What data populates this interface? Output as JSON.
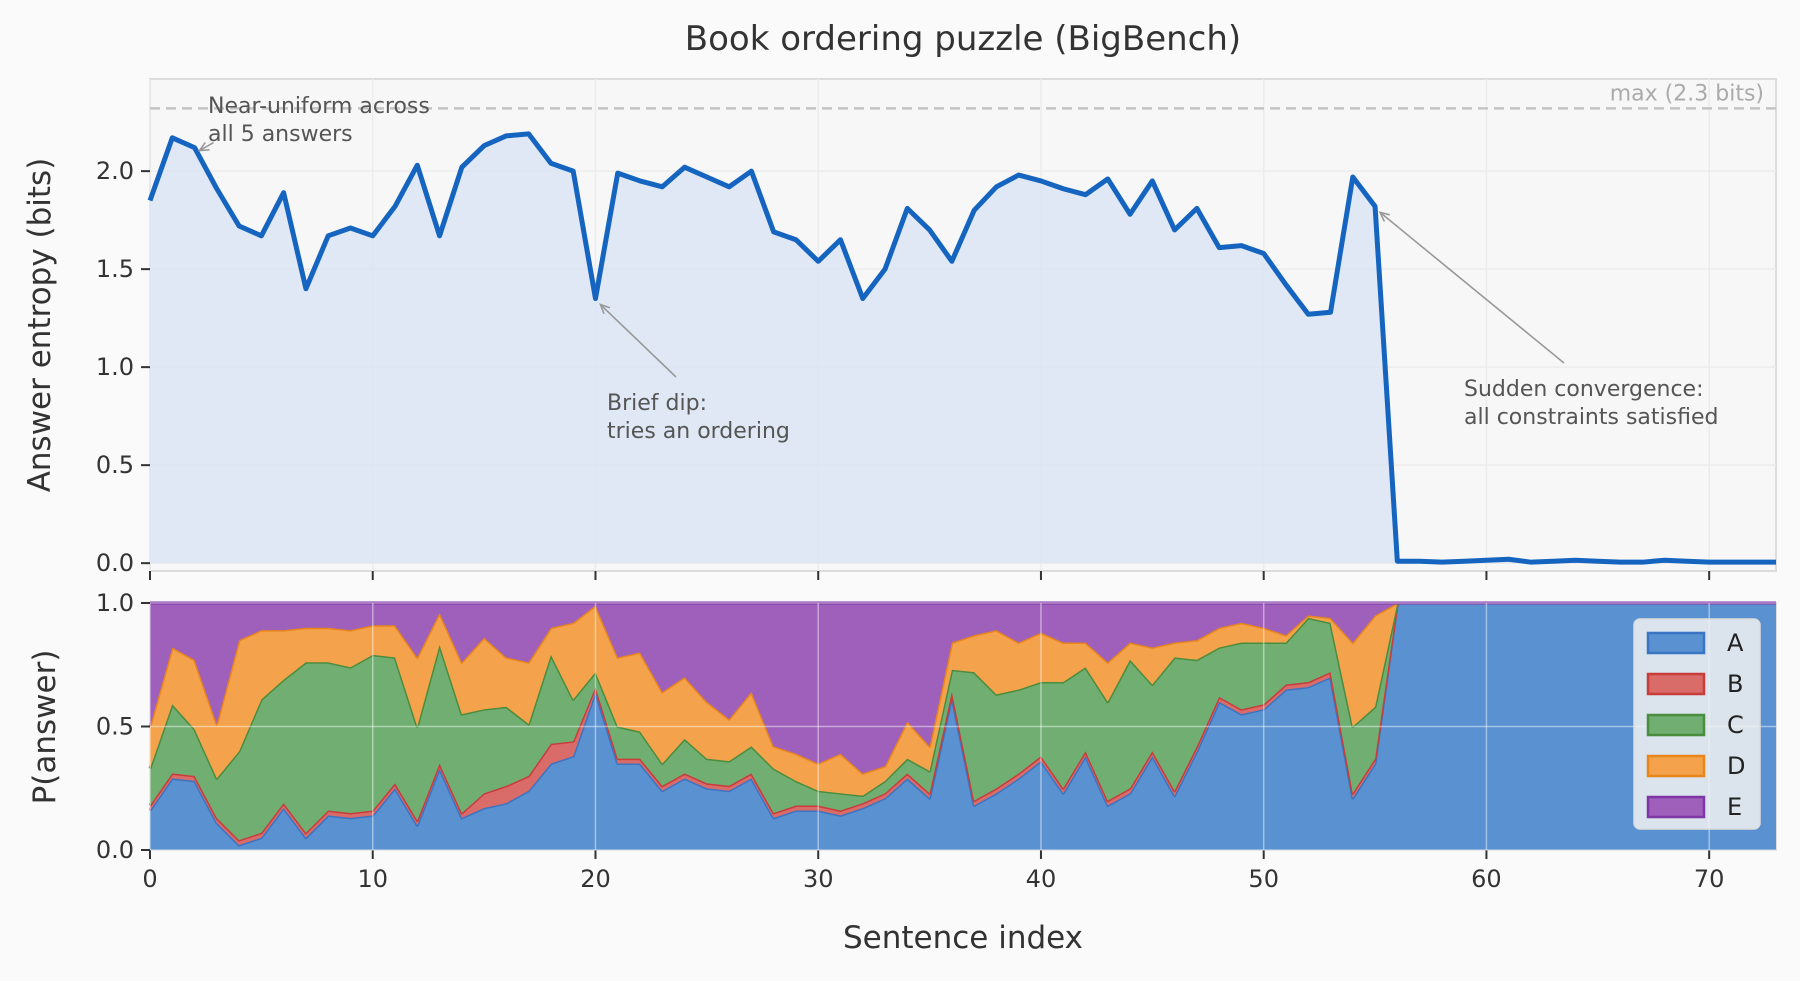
{
  "chart_data": [
    {
      "type": "line",
      "title": "Book ordering puzzle (BigBench)",
      "ylabel": "Answer entropy (bits)",
      "xlim": [
        0,
        73
      ],
      "ylim": [
        -0.04,
        2.47
      ],
      "xticks": [
        0,
        10,
        20,
        30,
        40,
        50,
        60,
        70
      ],
      "yticks": [
        "0.0",
        "0.5",
        "1.0",
        "1.5",
        "2.0"
      ],
      "grid": true,
      "max_line": {
        "value": 2.32,
        "label": "max (2.3 bits)"
      },
      "x": [
        0,
        1,
        2,
        3,
        4,
        5,
        6,
        7,
        8,
        9,
        10,
        11,
        12,
        13,
        14,
        15,
        16,
        17,
        18,
        19,
        20,
        21,
        22,
        23,
        24,
        25,
        26,
        27,
        28,
        29,
        30,
        31,
        32,
        33,
        34,
        35,
        36,
        37,
        38,
        39,
        40,
        41,
        42,
        43,
        44,
        45,
        46,
        47,
        48,
        49,
        50,
        51,
        52,
        53,
        54,
        55,
        56,
        57,
        58,
        59,
        60,
        61,
        62,
        63,
        64,
        65,
        66,
        67,
        68,
        69,
        70,
        71,
        72,
        73
      ],
      "entropy": [
        1.85,
        2.17,
        2.12,
        1.91,
        1.72,
        1.67,
        1.89,
        1.4,
        1.67,
        1.71,
        1.67,
        1.82,
        2.03,
        1.67,
        2.02,
        2.13,
        2.18,
        2.19,
        2.04,
        2.0,
        1.35,
        1.99,
        1.95,
        1.92,
        2.02,
        1.97,
        1.92,
        2.0,
        1.69,
        1.65,
        1.54,
        1.65,
        1.35,
        1.5,
        1.81,
        1.7,
        1.54,
        1.8,
        1.92,
        1.98,
        1.95,
        1.91,
        1.88,
        1.96,
        1.78,
        1.95,
        1.7,
        1.81,
        1.61,
        1.62,
        1.58,
        1.42,
        1.27,
        1.28,
        1.97,
        1.82,
        0.01,
        0.01,
        0.005,
        0.01,
        0.015,
        0.02,
        0.005,
        0.01,
        0.015,
        0.01,
        0.005,
        0.005,
        0.015,
        0.01,
        0.005,
        0.005,
        0.005,
        0.005
      ],
      "annotations": [
        {
          "lines": [
            "Near-uniform across",
            "all 5 answers"
          ],
          "x": 2,
          "y": 2.12
        },
        {
          "lines": [
            "Brief dip:",
            "tries an ordering"
          ],
          "x": 20,
          "y": 1.35
        },
        {
          "lines": [
            "Sudden convergence:",
            "all constraints satisfied"
          ],
          "x": 55,
          "y": 1.82
        }
      ]
    },
    {
      "type": "area",
      "stacked": true,
      "xlabel": "Sentence index",
      "ylabel": "P(answer)",
      "xlim": [
        0,
        73
      ],
      "ylim": [
        0,
        1
      ],
      "xticks": [
        "0",
        "10",
        "20",
        "30",
        "40",
        "50",
        "60",
        "70"
      ],
      "yticks": [
        "0.0",
        "0.5",
        "1.0"
      ],
      "legend_position": "right",
      "series": [
        {
          "name": "A",
          "color": "#5a91d1",
          "edge": "#3b74c2",
          "values": [
            0.16,
            0.29,
            0.28,
            0.11,
            0.02,
            0.05,
            0.17,
            0.05,
            0.14,
            0.13,
            0.14,
            0.25,
            0.1,
            0.33,
            0.13,
            0.17,
            0.19,
            0.24,
            0.35,
            0.38,
            0.64,
            0.35,
            0.35,
            0.24,
            0.29,
            0.25,
            0.24,
            0.29,
            0.13,
            0.16,
            0.16,
            0.14,
            0.17,
            0.21,
            0.29,
            0.21,
            0.62,
            0.18,
            0.23,
            0.29,
            0.36,
            0.23,
            0.38,
            0.18,
            0.23,
            0.38,
            0.22,
            0.4,
            0.6,
            0.55,
            0.57,
            0.65,
            0.66,
            0.7,
            0.21,
            0.35,
            1,
            1,
            1,
            1,
            1,
            1,
            1,
            1,
            1,
            1,
            1,
            1,
            1,
            1,
            1,
            1,
            1,
            1
          ]
        },
        {
          "name": "B",
          "color": "#d96b68",
          "edge": "#c83c3c",
          "values": [
            0.02,
            0.02,
            0.02,
            0.02,
            0.02,
            0.02,
            0.02,
            0.02,
            0.02,
            0.02,
            0.02,
            0.02,
            0.02,
            0.02,
            0.02,
            0.06,
            0.07,
            0.06,
            0.08,
            0.06,
            0.02,
            0.02,
            0.02,
            0.02,
            0.02,
            0.02,
            0.02,
            0.02,
            0.02,
            0.02,
            0.02,
            0.02,
            0.02,
            0.02,
            0.02,
            0.02,
            0.02,
            0.02,
            0.02,
            0.02,
            0.02,
            0.02,
            0.02,
            0.02,
            0.02,
            0.02,
            0.02,
            0.02,
            0.02,
            0.02,
            0.02,
            0.02,
            0.02,
            0.02,
            0.02,
            0.02,
            0,
            0,
            0,
            0,
            0,
            0,
            0,
            0,
            0,
            0,
            0,
            0,
            0,
            0,
            0,
            0,
            0,
            0
          ]
        },
        {
          "name": "C",
          "color": "#70ae72",
          "edge": "#4a8d3e",
          "values": [
            0.15,
            0.28,
            0.19,
            0.16,
            0.36,
            0.54,
            0.5,
            0.69,
            0.6,
            0.59,
            0.63,
            0.51,
            0.38,
            0.48,
            0.4,
            0.34,
            0.32,
            0.21,
            0.36,
            0.17,
            0.06,
            0.13,
            0.11,
            0.09,
            0.14,
            0.1,
            0.1,
            0.11,
            0.18,
            0.1,
            0.06,
            0.07,
            0.03,
            0.05,
            0.06,
            0.09,
            0.09,
            0.52,
            0.38,
            0.34,
            0.3,
            0.43,
            0.34,
            0.4,
            0.52,
            0.27,
            0.54,
            0.35,
            0.2,
            0.27,
            0.25,
            0.17,
            0.26,
            0.2,
            0.27,
            0.21,
            0,
            0,
            0,
            0,
            0,
            0,
            0,
            0,
            0,
            0,
            0,
            0,
            0,
            0,
            0,
            0,
            0,
            0
          ]
        },
        {
          "name": "D",
          "color": "#f4a24b",
          "edge": "#e8861c",
          "values": [
            0.17,
            0.23,
            0.28,
            0.22,
            0.45,
            0.28,
            0.2,
            0.14,
            0.14,
            0.15,
            0.12,
            0.13,
            0.28,
            0.13,
            0.21,
            0.29,
            0.2,
            0.25,
            0.11,
            0.31,
            0.27,
            0.28,
            0.32,
            0.29,
            0.25,
            0.23,
            0.17,
            0.22,
            0.09,
            0.11,
            0.11,
            0.16,
            0.09,
            0.06,
            0.15,
            0.1,
            0.11,
            0.15,
            0.26,
            0.19,
            0.2,
            0.16,
            0.1,
            0.16,
            0.07,
            0.15,
            0.06,
            0.08,
            0.08,
            0.08,
            0.06,
            0.03,
            0.01,
            0.02,
            0.34,
            0.37,
            0,
            0,
            0,
            0,
            0,
            0,
            0,
            0,
            0,
            0,
            0,
            0,
            0,
            0,
            0,
            0,
            0,
            0
          ]
        },
        {
          "name": "E",
          "color": "#9e60bb",
          "edge": "#7e35a6",
          "values": [
            0.5,
            0.18,
            0.23,
            0.49,
            0.15,
            0.11,
            0.11,
            0.1,
            0.1,
            0.11,
            0.09,
            0.09,
            0.22,
            0.04,
            0.24,
            0.14,
            0.22,
            0.24,
            0.1,
            0.08,
            0.01,
            0.22,
            0.2,
            0.36,
            0.3,
            0.4,
            0.47,
            0.36,
            0.58,
            0.61,
            0.65,
            0.61,
            0.69,
            0.66,
            0.48,
            0.58,
            0.16,
            0.13,
            0.11,
            0.16,
            0.12,
            0.16,
            0.16,
            0.24,
            0.16,
            0.18,
            0.16,
            0.15,
            0.1,
            0.08,
            0.1,
            0.13,
            0.05,
            0.06,
            0.16,
            0.05,
            0,
            0,
            0,
            0,
            0,
            0,
            0,
            0,
            0,
            0,
            0,
            0,
            0,
            0,
            0,
            0,
            0,
            0
          ]
        }
      ]
    }
  ],
  "colors": {
    "entropy_line": "#1565c0",
    "entropy_fill": "#dce6f3"
  }
}
